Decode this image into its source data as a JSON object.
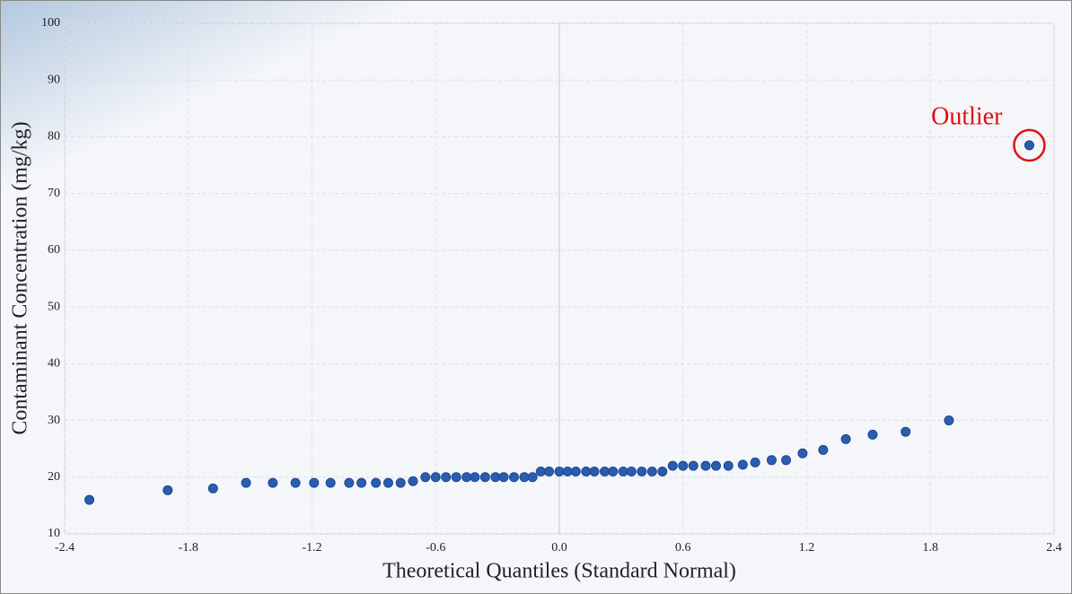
{
  "chart_data": {
    "type": "scatter",
    "x_label": "Theoretical Quantiles (Standard Normal)",
    "y_label": "Contaminant Concentration (mg/kg)",
    "annotation": "Outlier",
    "color": "#2a5db0",
    "annotation_color": "#e01010",
    "grid": true,
    "x": [
      -2.28,
      -1.9,
      -1.68,
      -1.52,
      -1.39,
      -1.28,
      -1.19,
      -1.11,
      -1.02,
      -0.96,
      -0.89,
      -0.83,
      -0.77,
      -0.71,
      -0.65,
      -0.6,
      -0.55,
      -0.5,
      -0.45,
      -0.41,
      -0.36,
      -0.31,
      -0.27,
      -0.22,
      -0.17,
      -0.13,
      -0.09,
      -0.05,
      0.0,
      0.04,
      0.08,
      0.13,
      0.17,
      0.22,
      0.26,
      0.31,
      0.35,
      0.4,
      0.45,
      0.5,
      0.55,
      0.6,
      0.65,
      0.71,
      0.76,
      0.82,
      0.89,
      0.95,
      1.03,
      1.1,
      1.18,
      1.28,
      1.39,
      1.52,
      1.68,
      1.89,
      2.28
    ],
    "values": [
      16.0,
      17.7,
      18.0,
      19,
      19,
      19,
      19,
      19,
      19,
      19,
      19,
      19,
      19,
      19.3,
      20,
      20,
      20,
      20,
      20,
      20,
      20,
      20,
      20,
      20,
      20,
      20,
      21,
      21,
      21,
      21,
      21,
      21,
      21,
      21,
      21,
      21,
      21,
      21,
      21,
      21,
      22,
      22,
      22,
      22,
      22,
      22,
      22.2,
      22.6,
      23,
      23,
      24.2,
      24.8,
      26.7,
      27.5,
      28,
      30,
      78.5
    ],
    "xlim": [
      -2.4,
      2.4
    ],
    "xticks": [
      -2.4,
      -1.8,
      -1.2,
      -0.6,
      {
        "value": 0,
        "label": "0.0"
      },
      0.6,
      1.2,
      1.8,
      2.4
    ],
    "ylim": [
      10,
      100
    ],
    "yticks": [
      10,
      20,
      30,
      40,
      50,
      60,
      70,
      80,
      90,
      100
    ]
  }
}
